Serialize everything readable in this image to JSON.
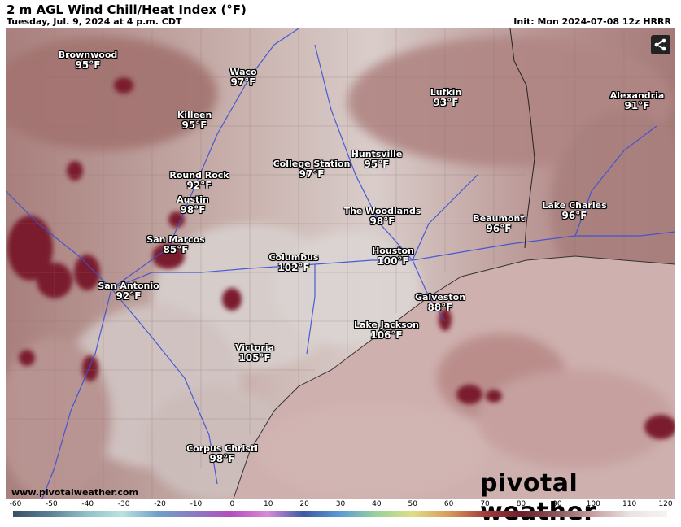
{
  "header": {
    "title": "2 m AGL Wind Chill/Heat Index (°F)",
    "subtitle": "Tuesday, Jul. 9, 2024 at 4 p.m. CDT",
    "init": "Init: Mon 2024-07-08 12z HRRR"
  },
  "cities": [
    {
      "name": "Brownwood",
      "value": "95°F"
    },
    {
      "name": "Waco",
      "value": "97°F"
    },
    {
      "name": "Killeen",
      "value": "95°F"
    },
    {
      "name": "Lufkin",
      "value": "93°F"
    },
    {
      "name": "Alexandria",
      "value": "91°F"
    },
    {
      "name": "Huntsville",
      "value": "95°F"
    },
    {
      "name": "College Station",
      "value": "97°F"
    },
    {
      "name": "Round Rock",
      "value": "92°F"
    },
    {
      "name": "Austin",
      "value": "98°F"
    },
    {
      "name": "The Woodlands",
      "value": "98°F"
    },
    {
      "name": "Beaumont",
      "value": "96°F"
    },
    {
      "name": "Lake Charles",
      "value": "96°F"
    },
    {
      "name": "San Marcos",
      "value": "85°F"
    },
    {
      "name": "Columbus",
      "value": "102°F"
    },
    {
      "name": "Houston",
      "value": "100°F"
    },
    {
      "name": "San Antonio",
      "value": "92°F"
    },
    {
      "name": "Galveston",
      "value": "88°F"
    },
    {
      "name": "Lake Jackson",
      "value": "106°F"
    },
    {
      "name": "Victoria",
      "value": "105°F"
    },
    {
      "name": "Corpus Christi",
      "value": "98°F"
    }
  ],
  "footer": {
    "url": "www.pivotalweather.com",
    "brand": "pivotal weather"
  },
  "icons": {
    "share": "share-icon"
  },
  "colorbar": {
    "ticks": [
      "-60",
      "-50",
      "-40",
      "-30",
      "-20",
      "-10",
      "0",
      "10",
      "20",
      "30",
      "40",
      "50",
      "60",
      "70",
      "80",
      "90",
      "100",
      "110",
      "120"
    ],
    "colors": [
      "#3a4f63",
      "#5b7f94",
      "#8fc0c4",
      "#b9e3df",
      "#6f9fc9",
      "#8a79c4",
      "#b24fc0",
      "#d98bd8",
      "#3d5aa7",
      "#5d9bd3",
      "#99d39a",
      "#e1dd83",
      "#d89a5a",
      "#a23c3c",
      "#6b1e2a",
      "#8e5a5a",
      "#c9a3a3",
      "#ece3e3",
      "#f7f3f3"
    ]
  }
}
